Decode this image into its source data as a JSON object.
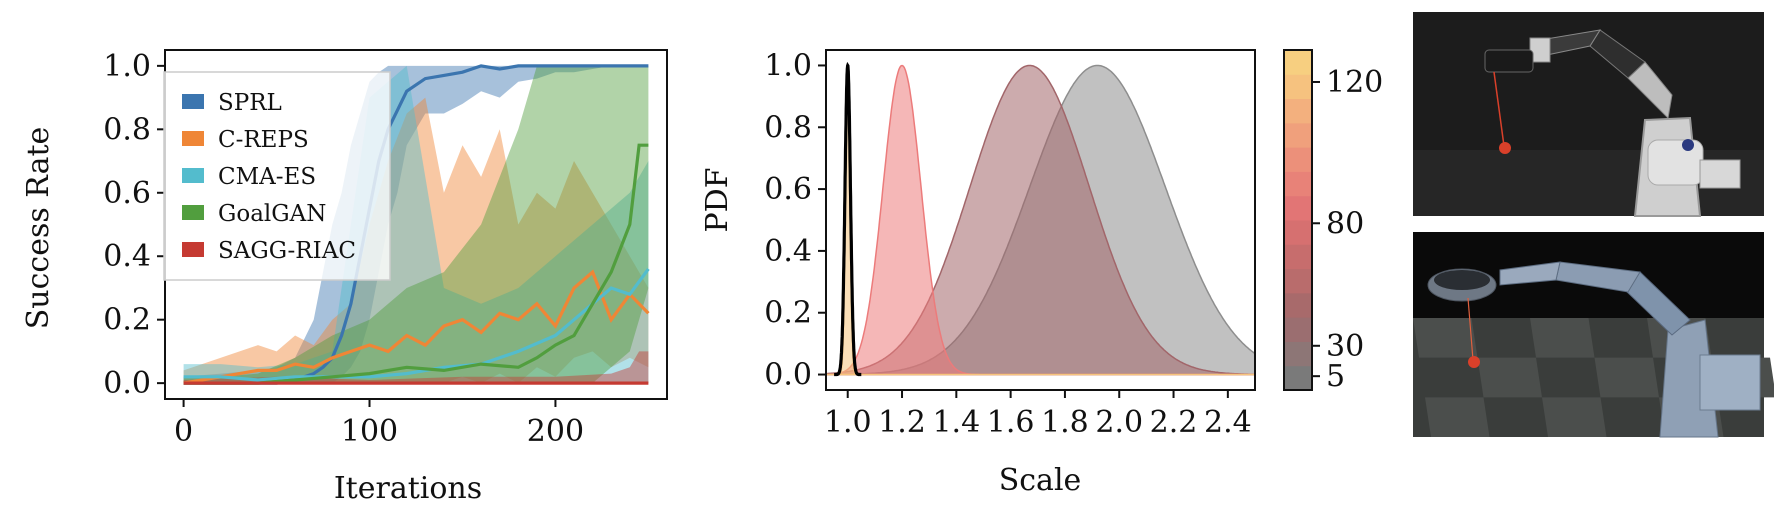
{
  "chart_data": [
    {
      "type": "line",
      "xlabel": "Iterations",
      "ylabel": "Success Rate",
      "xlim": [
        -10,
        260
      ],
      "ylim": [
        -0.05,
        1.05
      ],
      "xticks": [
        "0",
        "100",
        "200"
      ],
      "xtick_values": [
        0,
        100,
        200
      ],
      "yticks": [
        "0.0",
        "0.2",
        "0.4",
        "0.6",
        "0.8",
        "1.0"
      ],
      "ytick_values": [
        0,
        0.2,
        0.4,
        0.6,
        0.8,
        1.0
      ],
      "legend": "top-left",
      "series": [
        {
          "name": "SPRL",
          "color": "#3b75af",
          "x": [
            0,
            20,
            40,
            50,
            60,
            70,
            75,
            80,
            85,
            90,
            95,
            100,
            105,
            110,
            115,
            120,
            130,
            140,
            150,
            160,
            170,
            180,
            190,
            200,
            210,
            220,
            230,
            240,
            250
          ],
          "mean": [
            0,
            0,
            0,
            0,
            0.01,
            0.03,
            0.05,
            0.08,
            0.15,
            0.25,
            0.4,
            0.55,
            0.7,
            0.8,
            0.86,
            0.92,
            0.96,
            0.97,
            0.98,
            1.0,
            0.99,
            1.0,
            1.0,
            1.0,
            1.0,
            1.0,
            1.0,
            1.0,
            1.0
          ],
          "lower": [
            0,
            0,
            0,
            0,
            0,
            0,
            0,
            0,
            0.02,
            0.05,
            0.1,
            0.2,
            0.35,
            0.5,
            0.6,
            0.75,
            0.85,
            0.85,
            0.88,
            0.92,
            0.9,
            0.95,
            0.96,
            0.98,
            0.98,
            0.99,
            1.0,
            1.0,
            1.0
          ],
          "upper": [
            0.02,
            0.03,
            0.04,
            0.05,
            0.08,
            0.2,
            0.35,
            0.5,
            0.6,
            0.75,
            0.85,
            0.95,
            0.98,
            1.0,
            1.0,
            1.0,
            1.0,
            1.0,
            1.0,
            1.0,
            1.0,
            1.0,
            1.0,
            1.0,
            1.0,
            1.0,
            1.0,
            1.0,
            1.0
          ]
        },
        {
          "name": "C-REPS",
          "color": "#ef8636",
          "x": [
            0,
            20,
            40,
            50,
            60,
            70,
            80,
            90,
            100,
            110,
            120,
            130,
            140,
            150,
            160,
            170,
            180,
            190,
            200,
            210,
            220,
            230,
            240,
            250
          ],
          "mean": [
            0,
            0.02,
            0.04,
            0.04,
            0.06,
            0.05,
            0.08,
            0.1,
            0.12,
            0.1,
            0.15,
            0.12,
            0.18,
            0.2,
            0.16,
            0.22,
            0.2,
            0.25,
            0.18,
            0.3,
            0.35,
            0.2,
            0.28,
            0.22
          ],
          "lower": [
            0,
            0,
            0,
            0,
            0,
            0,
            0,
            0,
            0,
            0,
            0,
            0,
            0,
            0.02,
            0,
            0.03,
            0,
            0.05,
            0.02,
            0.08,
            0.1,
            0.05,
            0.08,
            0.05
          ],
          "upper": [
            0.04,
            0.08,
            0.12,
            0.1,
            0.15,
            0.12,
            0.2,
            0.25,
            0.5,
            0.7,
            0.85,
            0.9,
            0.6,
            0.75,
            0.65,
            0.8,
            0.5,
            0.6,
            0.55,
            0.7,
            0.6,
            0.5,
            0.4,
            0.3
          ]
        },
        {
          "name": "CMA-ES",
          "color": "#53bccd",
          "x": [
            0,
            20,
            40,
            60,
            80,
            100,
            120,
            140,
            160,
            180,
            200,
            210,
            220,
            230,
            240,
            250
          ],
          "mean": [
            0.02,
            0.02,
            0.01,
            0.02,
            0.02,
            0.02,
            0.03,
            0.05,
            0.06,
            0.1,
            0.15,
            0.2,
            0.25,
            0.3,
            0.28,
            0.36
          ],
          "lower": [
            0,
            0,
            0,
            0,
            0,
            0,
            0,
            0,
            0,
            0,
            0,
            0,
            0,
            0,
            0,
            0
          ],
          "upper": [
            0.06,
            0.06,
            0.05,
            0.06,
            0.1,
            0.9,
            1.0,
            0.3,
            0.25,
            0.3,
            0.4,
            0.45,
            0.5,
            0.55,
            0.6,
            0.7
          ]
        },
        {
          "name": "GoalGAN",
          "color": "#519e3e",
          "x": [
            0,
            20,
            40,
            60,
            80,
            100,
            120,
            140,
            160,
            180,
            190,
            200,
            210,
            220,
            230,
            240,
            245,
            250
          ],
          "mean": [
            0,
            0,
            0,
            0.01,
            0.02,
            0.03,
            0.05,
            0.04,
            0.06,
            0.05,
            0.08,
            0.12,
            0.15,
            0.25,
            0.35,
            0.5,
            0.75,
            0.75
          ],
          "lower": [
            0,
            0,
            0,
            0,
            0,
            0,
            0,
            0,
            0,
            0,
            0,
            0,
            0,
            0,
            0.05,
            0.1,
            0.2,
            0.3
          ],
          "upper": [
            0.02,
            0.02,
            0.03,
            0.08,
            0.15,
            0.2,
            0.3,
            0.35,
            0.5,
            0.8,
            1.0,
            1.0,
            1.0,
            1.0,
            1.0,
            1.0,
            1.0,
            1.0
          ]
        },
        {
          "name": "SAGG-RIAC",
          "color": "#c53a32",
          "x": [
            0,
            50,
            100,
            150,
            200,
            230,
            240,
            245,
            250
          ],
          "mean": [
            0,
            0,
            0,
            0,
            0,
            0,
            0,
            0,
            0
          ],
          "lower": [
            0,
            0,
            0,
            0,
            0,
            0,
            0,
            0,
            0
          ],
          "upper": [
            0.01,
            0.02,
            0.01,
            0.02,
            0.02,
            0.03,
            0.05,
            0.1,
            0.1
          ]
        }
      ]
    },
    {
      "type": "area",
      "xlabel": "Scale",
      "ylabel": "PDF",
      "xlim": [
        0.92,
        2.5
      ],
      "ylim": [
        -0.05,
        1.05
      ],
      "xticks": [
        "1.0",
        "1.2",
        "1.4",
        "1.6",
        "1.8",
        "2.0",
        "2.2",
        "2.4"
      ],
      "xtick_values": [
        1.0,
        1.2,
        1.4,
        1.6,
        1.8,
        2.0,
        2.2,
        2.4
      ],
      "yticks": [
        "0.0",
        "0.2",
        "0.4",
        "0.6",
        "0.8",
        "1.0"
      ],
      "ytick_values": [
        0,
        0.2,
        0.4,
        0.6,
        0.8,
        1.0
      ],
      "series": [
        {
          "iteration": 5,
          "mean": 1.92,
          "std": 0.25,
          "color": "#8e8e8e"
        },
        {
          "iteration": 30,
          "mean": 1.67,
          "std": 0.22,
          "color": "#a2666a"
        },
        {
          "iteration": 80,
          "mean": 1.2,
          "std": 0.07,
          "color": "#ec7b7b"
        },
        {
          "iteration": 120,
          "mean": 1.0,
          "std": 0.008,
          "color": "#f6c57d"
        }
      ],
      "target": {
        "mean": 1.0,
        "std": 0.01,
        "color": "#000000"
      },
      "colorbar": {
        "ticks": [
          "5",
          "30",
          "80",
          "120"
        ],
        "tick_values": [
          5,
          30,
          80,
          120
        ],
        "range": [
          0,
          125
        ],
        "colors": [
          "#7a7a7a",
          "#8d7676",
          "#9b6e70",
          "#a86a6b",
          "#b96c6c",
          "#c76d6d",
          "#d67070",
          "#e27575",
          "#e88278",
          "#ec907a",
          "#f0a07c",
          "#f3b07e",
          "#f6c27f",
          "#f7cf80"
        ]
      }
    }
  ],
  "photos": {
    "real": {
      "bg": "#1c1c1c",
      "robot": "#d8d8d8",
      "ball": "#d9402a"
    },
    "sim": {
      "bg": "#0a0a0a",
      "floor_a": "#3a3d3b",
      "floor_b": "#4b4e4c",
      "robot": "#8a9db5",
      "ball": "#d9402a"
    }
  }
}
